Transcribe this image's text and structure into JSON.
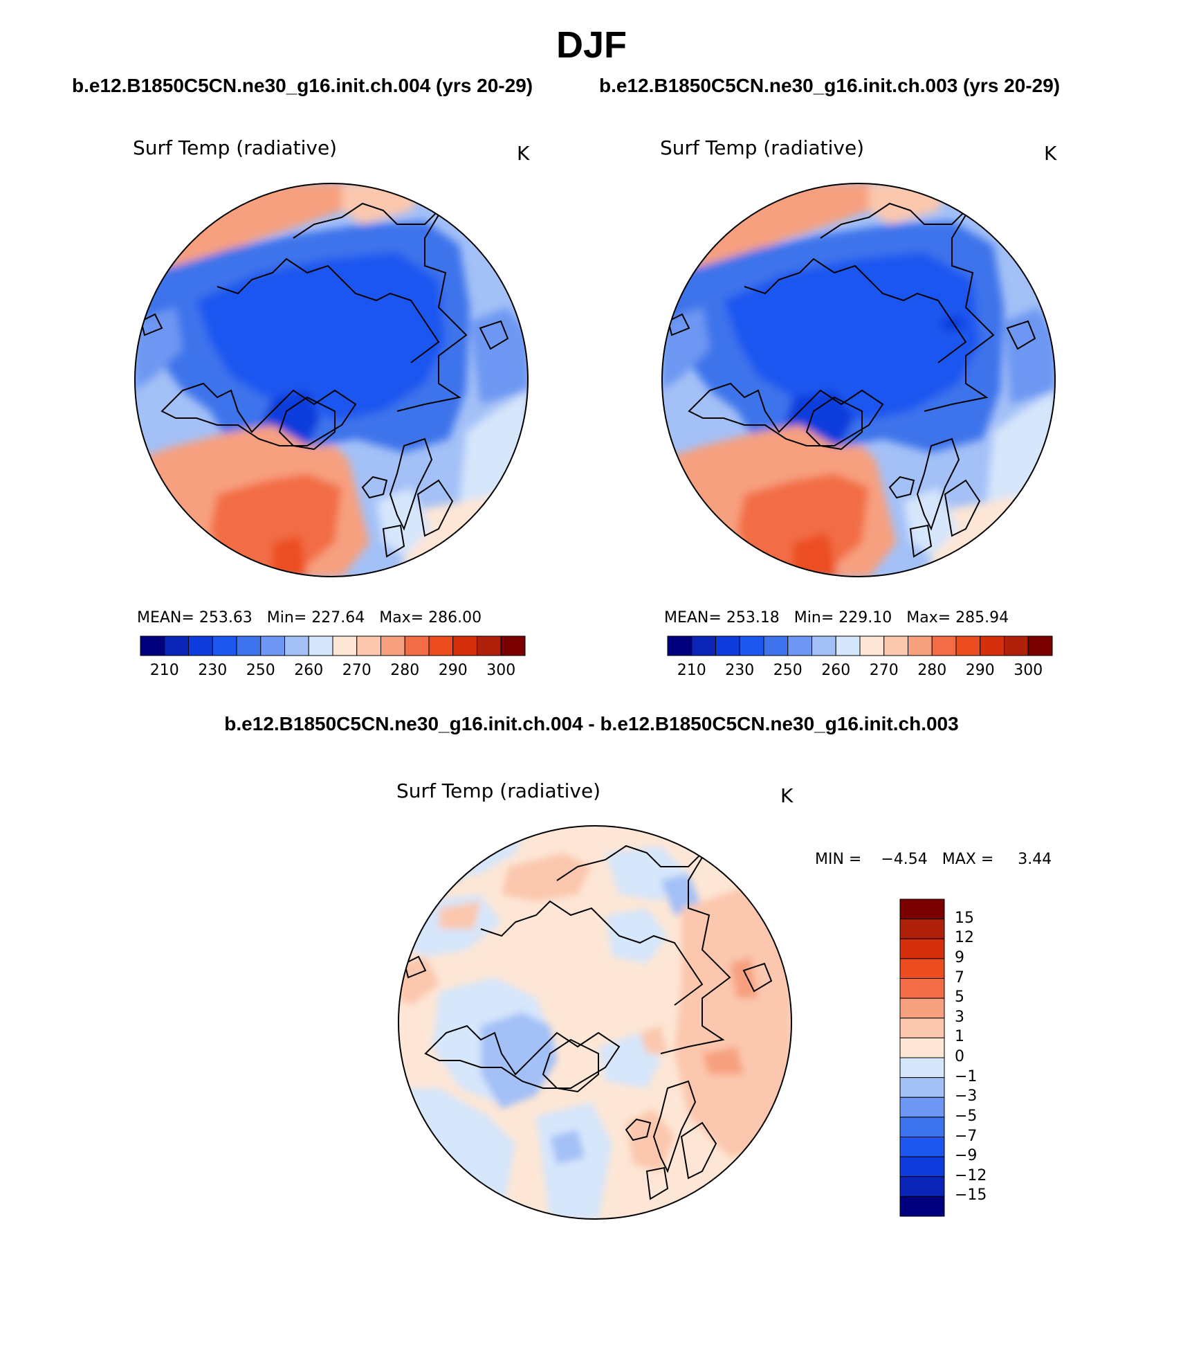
{
  "figure": {
    "title": "DJF",
    "case_left": "b.e12.B1850C5CN.ne30_g16.init.ch.004 (yrs 20-29)",
    "case_right": "b.e12.B1850C5CN.ne30_g16.init.ch.003 (yrs 20-29)",
    "diff_title": "b.e12.B1850C5CN.ne30_g16.init.ch.004 - b.e12.B1850C5CN.ne30_g16.init.ch.003"
  },
  "panels": [
    {
      "variable": "Surf Temp (radiative)",
      "units": "K",
      "mean_label": "MEAN=",
      "mean": "253.63",
      "min_label": "Min=",
      "min": "227.64",
      "max_label": "Max=",
      "max": "286.00",
      "colorbar_labels": [
        "210",
        "230",
        "250",
        "260",
        "270",
        "280",
        "290",
        "300"
      ]
    },
    {
      "variable": "Surf Temp (radiative)",
      "units": "K",
      "mean_label": "MEAN=",
      "mean": "253.18",
      "min_label": "Min=",
      "min": "229.10",
      "max_label": "Max=",
      "max": "285.94",
      "colorbar_labels": [
        "210",
        "230",
        "250",
        "260",
        "270",
        "280",
        "290",
        "300"
      ]
    }
  ],
  "difference": {
    "variable": "Surf Temp (radiative)",
    "units": "K",
    "min_label": "MIN =",
    "min": "−4.54",
    "max_label": "MAX =",
    "max": "3.44",
    "colorbar_labels": [
      "15",
      "12",
      "9",
      "7",
      "5",
      "3",
      "1",
      "0",
      "−1",
      "−3",
      "−5",
      "−7",
      "−9",
      "−12",
      "−15"
    ]
  },
  "colors": {
    "abs_scale": [
      "#00007f",
      "#0a24b8",
      "#0f3cdc",
      "#1e56f0",
      "#3d73eb",
      "#6d97f2",
      "#a3c0f7",
      "#d6e6fb",
      "#fde6d5",
      "#fbc7ae",
      "#f7a07f",
      "#f26d45",
      "#ec4d20",
      "#d4300e",
      "#ae200a",
      "#7a0000"
    ],
    "diff_scale": [
      "#7a0000",
      "#ae200a",
      "#d4300e",
      "#ec4d20",
      "#f26d45",
      "#f7a07f",
      "#fbc7ae",
      "#fde6d5",
      "#d6e6fb",
      "#a3c0f7",
      "#6d97f2",
      "#3d73eb",
      "#1e56f0",
      "#0f3cdc",
      "#0a24b8",
      "#00007f"
    ]
  }
}
